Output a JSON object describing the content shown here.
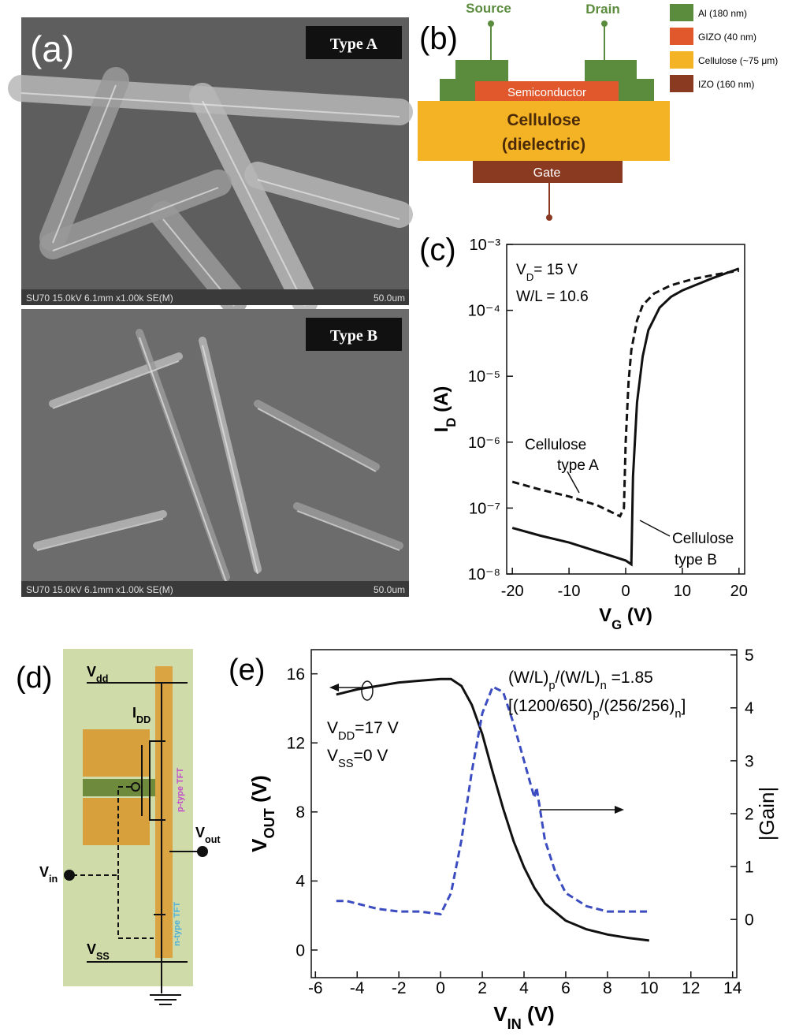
{
  "panel_labels": [
    "(a)",
    "(b)",
    "(c)",
    "(d)",
    "(e)"
  ],
  "sem": [
    {
      "label": "Type A",
      "info": "SU70 15.0kV 6.1mm x1.00k SE(M)",
      "scale": "50.0um"
    },
    {
      "label": "Type B",
      "info": "SU70 15.0kV 6.1mm x1.00k SE(M)",
      "scale": "50.0um"
    }
  ],
  "device": {
    "source": "Source",
    "drain": "Drain",
    "semiconductor": "Semiconductor",
    "dielectric": "Cellulose",
    "dielectric_note": "(dielectric)",
    "gate": "Gate",
    "legend": [
      {
        "name": "Al (180 nm)",
        "color": "#5b8c3e"
      },
      {
        "name": "GIZO (40 nm)",
        "color": "#e0582c"
      },
      {
        "name": "Cellulose (~75 μm)",
        "color": "#f4b324"
      },
      {
        "name": "IZO (160 nm)",
        "color": "#8b3a22"
      }
    ]
  },
  "circuit": {
    "vdd": [
      "V",
      "dd"
    ],
    "idd": [
      "I",
      "DD"
    ],
    "vin": [
      "V",
      "in"
    ],
    "vout": [
      "V",
      "out"
    ],
    "vss": [
      "V",
      "SS"
    ],
    "p_tft": "p-type TFT",
    "n_tft": "n-type TFT"
  },
  "chart_data": [
    {
      "type": "line",
      "yscale": "log",
      "xlim": [
        -21,
        21
      ],
      "ylim": [
        1e-08,
        0.001
      ],
      "xticks": [
        -20,
        -10,
        0,
        10,
        20
      ],
      "yticks": [
        {
          "value": 1e-08,
          "label": "10⁻⁸"
        },
        {
          "value": 1e-07,
          "label": "10⁻⁷"
        },
        {
          "value": 1e-06,
          "label": "10⁻⁶"
        },
        {
          "value": 1e-05,
          "label": "10⁻⁵"
        },
        {
          "value": 0.0001,
          "label": "10⁻⁴"
        },
        {
          "value": 0.001,
          "label": "10⁻³"
        }
      ],
      "xlabel": [
        "V",
        "G",
        " (V)"
      ],
      "ylabel": [
        "I",
        "D",
        " (A)"
      ],
      "annotations": [
        [
          "V",
          "D",
          "= 15 V"
        ],
        "W/L = 10.6",
        "Cellulose",
        "type A",
        "Cellulose",
        "type B"
      ],
      "series": [
        {
          "color": "#111111",
          "style": "dashed",
          "x": [
            -20,
            -15,
            -10,
            -5,
            -1,
            -0.3,
            0,
            0.5,
            1,
            2,
            3,
            5,
            8,
            12,
            16,
            20
          ],
          "values": [
            2.5e-07,
            1.9e-07,
            1.5e-07,
            1.1e-07,
            7.5e-08,
            1e-07,
            1e-06,
            8e-06,
            2.5e-05,
            7e-05,
            0.00012,
            0.00018,
            0.00024,
            0.0003,
            0.00035,
            0.0004
          ]
        },
        {
          "color": "#111111",
          "style": "solid",
          "x": [
            -20,
            -15,
            -10,
            -5,
            0,
            1,
            1.3,
            2,
            3,
            4,
            6,
            8,
            10,
            15,
            20
          ],
          "values": [
            5e-08,
            3.8e-08,
            3e-08,
            2.2e-08,
            1.6e-08,
            1.4e-08,
            3e-07,
            4e-06,
            2e-05,
            5e-05,
            0.00011,
            0.00016,
            0.0002,
            0.0003,
            0.00043
          ]
        }
      ]
    },
    {
      "type": "line",
      "xlim": [
        -6.2,
        14.2
      ],
      "ylim": [
        -1.6,
        17.4
      ],
      "y2lim": [
        -1.1,
        5.1
      ],
      "xticks": [
        -6,
        -4,
        -2,
        0,
        2,
        4,
        6,
        8,
        10,
        12,
        14
      ],
      "yticks": [
        0,
        4,
        8,
        12,
        16
      ],
      "y2ticks": [
        0,
        1,
        2,
        3,
        4,
        5
      ],
      "xlabel": [
        "V",
        "IN",
        " (V)"
      ],
      "ylabel": [
        "V",
        "OUT",
        " (V)"
      ],
      "y2label": "|Gain|",
      "annotations": [
        [
          "(W/L)",
          "p",
          "/(W/L)",
          "n",
          " =1.85"
        ],
        [
          "[(1200/650)",
          "p",
          "/(256/256)",
          "n",
          "]"
        ],
        [
          "V",
          "DD",
          "=17 V"
        ],
        [
          "V",
          "SS",
          "=0 V"
        ]
      ],
      "series": [
        {
          "color": "#111111",
          "style": "solid",
          "x": [
            -5,
            -4,
            -3,
            -2,
            -1,
            0,
            0.5,
            1,
            1.5,
            2,
            2.5,
            3,
            3.5,
            4,
            4.5,
            5,
            6,
            7,
            8,
            9,
            10
          ],
          "values": [
            14.8,
            15.1,
            15.3,
            15.5,
            15.6,
            15.7,
            15.7,
            15.3,
            14.2,
            12.5,
            10.3,
            8.2,
            6.3,
            4.8,
            3.6,
            2.7,
            1.7,
            1.2,
            0.9,
            0.7,
            0.55
          ]
        },
        {
          "color": "#3b4cc0",
          "style": "dashed",
          "axis": "y2",
          "x": [
            -5,
            -4.5,
            -4,
            -3,
            -2,
            -1,
            0,
            0.5,
            1,
            1.5,
            2,
            2.5,
            3,
            3.5,
            4,
            4.5,
            4.6,
            4.8,
            5,
            5.5,
            6,
            7,
            8,
            10
          ],
          "values": [
            0.35,
            0.35,
            0.3,
            0.2,
            0.15,
            0.15,
            0.1,
            0.5,
            1.5,
            2.8,
            3.9,
            4.4,
            4.3,
            3.7,
            3.0,
            2.3,
            2.5,
            2.0,
            1.5,
            0.9,
            0.5,
            0.25,
            0.15,
            0.15
          ]
        }
      ]
    }
  ]
}
